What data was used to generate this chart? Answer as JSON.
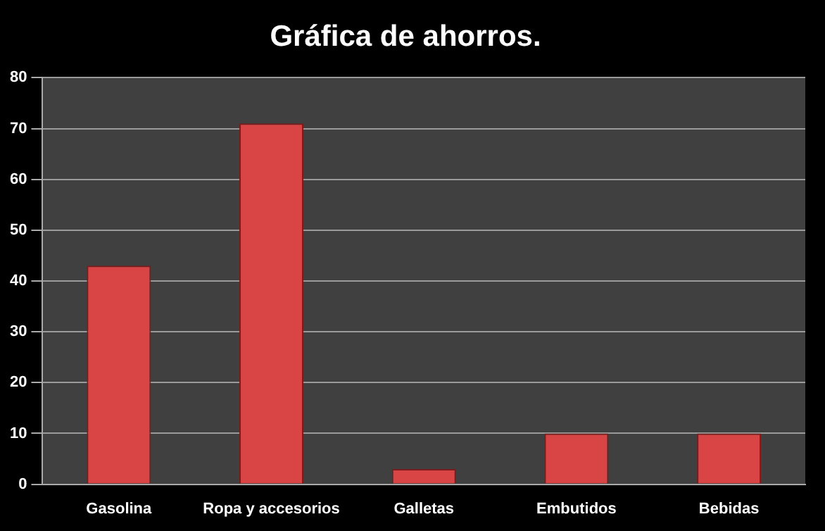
{
  "chart_data": {
    "type": "bar",
    "title": "Gráfica de ahorros.",
    "categories": [
      "Gasolina",
      "Ropa y accesorios",
      "Galletas",
      "Embutidos",
      "Bebidas"
    ],
    "values": [
      43,
      71,
      3,
      10,
      10
    ],
    "color": "#d94444",
    "ylim": [
      0,
      80
    ],
    "yticks": [
      0,
      10,
      20,
      30,
      40,
      50,
      60,
      70,
      80
    ],
    "grid": "y"
  }
}
